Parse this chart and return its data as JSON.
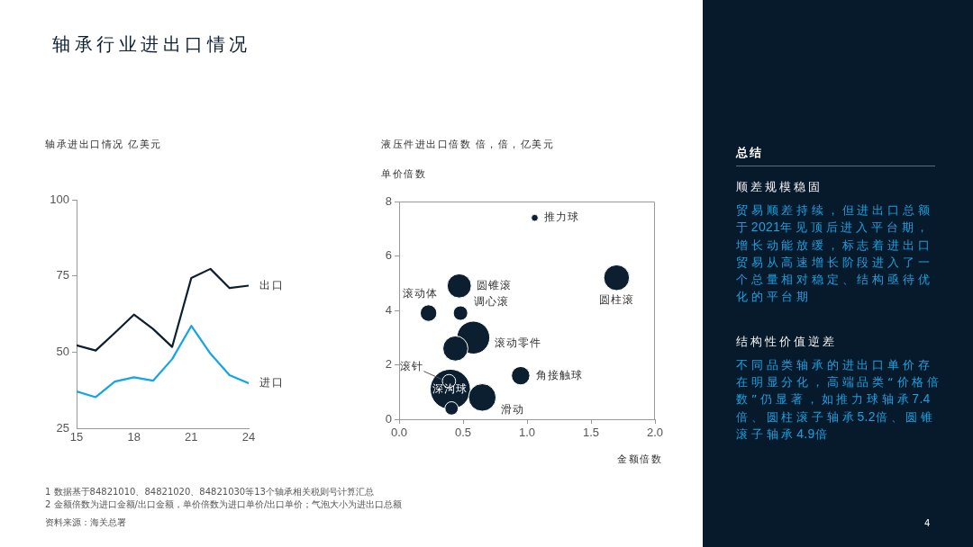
{
  "chart_data": [
    {
      "type": "line",
      "title": "轴承行业进出口情况",
      "subtitle": "轴承进出口情况 亿美元",
      "x": [
        15,
        16,
        17,
        18,
        19,
        20,
        21,
        22,
        23,
        24
      ],
      "series": [
        {
          "name": "出口",
          "color": "#0c1f30",
          "values": [
            52.2,
            50.5,
            56.3,
            62.3,
            57.6,
            51.7,
            74.3,
            77.3,
            71.0,
            71.8
          ]
        },
        {
          "name": "进口",
          "color": "#13a4ea",
          "values": [
            37.1,
            35.2,
            40.3,
            41.7,
            40.6,
            47.7,
            58.6,
            49.5,
            42.4,
            39.8
          ]
        }
      ],
      "xlim": [
        15,
        24
      ],
      "xticks": [
        15,
        18,
        21,
        24
      ],
      "ylim": [
        25,
        100
      ],
      "yticks": [
        25,
        50,
        75,
        100
      ],
      "grid": false,
      "legend": false,
      "marker": "none",
      "line_style": "solid",
      "annotations": [
        "1 数据基于84821010、84821020、84821030等13个轴承相关税则号计算汇总",
        "2 金额倍数为进口金额/出口金额，单价倍数为进口单价/出口单价；气泡大小为进出口总额",
        "资料来源：海关总署"
      ]
    },
    {
      "type": "bubble",
      "title": "液压件进出口倍数 倍，倍，亿美元",
      "ylabel": "单价倍数",
      "xlabel": "金额倍数",
      "series": [
        {
          "name": "推力球",
          "color": "#0c1f30",
          "x": [
            1.06
          ],
          "values": [
            7.4
          ],
          "sizes": [
            0.03
          ]
        },
        {
          "name": "圆锥滚",
          "color": "#0c1f30",
          "x": [
            0.47
          ],
          "values": [
            4.9
          ],
          "sizes": [
            0.36
          ]
        },
        {
          "name": "圆柱滚",
          "color": "#0c1f30",
          "x": [
            1.7
          ],
          "values": [
            5.2
          ],
          "sizes": [
            0.41
          ]
        },
        {
          "name": "滚动体",
          "color": "#0c1f30",
          "x": [
            0.23
          ],
          "values": [
            3.9
          ],
          "sizes": [
            0.17
          ]
        },
        {
          "name": "调心滚",
          "color": "#0c1f30",
          "x": [
            0.48
          ],
          "values": [
            3.9
          ],
          "sizes": [
            0.13
          ]
        },
        {
          "name": "滚动零件",
          "color": "#0c1f30",
          "x": [
            0.58
          ],
          "values": [
            3.0
          ],
          "sizes": [
            0.67
          ]
        },
        {
          "color": "#0c1f30",
          "x": [
            0.44
          ],
          "values": [
            2.6
          ],
          "sizes": [
            0.39
          ]
        },
        {
          "name": "角接触球",
          "color": "#0c1f30",
          "x": [
            0.95
          ],
          "values": [
            1.6
          ],
          "sizes": [
            0.21
          ]
        },
        {
          "name": "深沟球",
          "color": "#0c1f30",
          "x": [
            0.4
          ],
          "values": [
            1.1
          ],
          "sizes": [
            1
          ]
        },
        {
          "name": "滚针",
          "color": "#0c1f30",
          "x": [
            0.39
          ],
          "values": [
            1.4
          ],
          "sizes": [
            0.11
          ]
        },
        {
          "name": "滑动",
          "color": "#0c1f30",
          "x": [
            0.65
          ],
          "values": [
            0.8
          ],
          "sizes": [
            0.47
          ]
        },
        {
          "color": "#0c1f30",
          "x": [
            0.41
          ],
          "values": [
            0.4
          ],
          "sizes": [
            0.11
          ]
        }
      ],
      "xlim": [
        0,
        2
      ],
      "xticks": [
        {
          "value": 0,
          "label": "0.0"
        },
        0.5,
        {
          "value": 1,
          "label": "1.0"
        },
        1.5,
        {
          "value": 2,
          "label": "2.0"
        }
      ],
      "ylim": [
        0,
        8
      ],
      "yticks": [
        0,
        2,
        4,
        6,
        8
      ],
      "grid": false,
      "legend": false
    },
    {
      "type": "other",
      "title": "总结",
      "annotations": [
        "顺差规模稳固",
        "贸易顺差持续，但进出口总额于2021年见顶后进入平台期，增长动能放缓，标志着进出口贸易从高速增长阶段进入了一个总量相对稳定、结构亟待优化的平台期",
        "结构性价值逆差",
        "不同品类轴承的进出口单价存在明显分化，高端品类“价格倍数”仍显著，如推力球轴承7.4倍、圆柱滚子轴承5.2倍、圆锥滚子轴承4.9倍",
        "4"
      ]
    }
  ]
}
